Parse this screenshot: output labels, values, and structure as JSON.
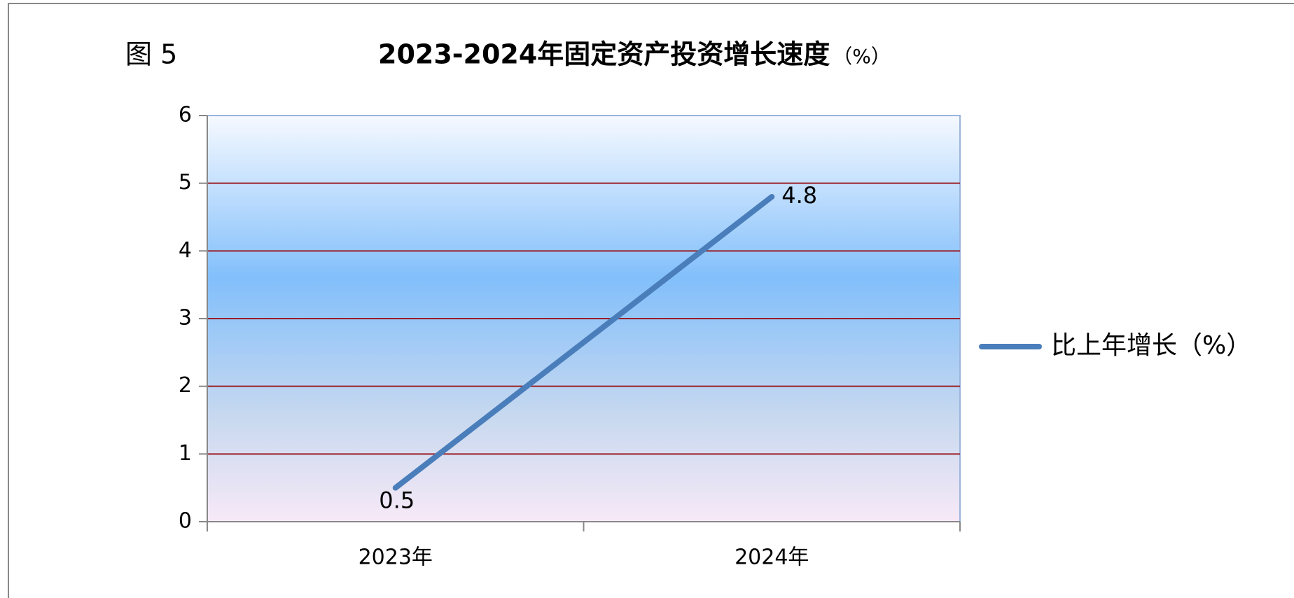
{
  "chart_data": {
    "type": "line",
    "figure_label": "图 5",
    "title": "2023-2024年固定资产投资增长速度",
    "title_unit": "（%）",
    "categories": [
      "2023年",
      "2024年"
    ],
    "series": [
      {
        "name": "比上年增长（%）",
        "color": "#4a7ebb",
        "values": [
          0.5,
          4.8
        ]
      }
    ],
    "ylim": [
      0,
      6
    ],
    "yticks": [
      0,
      1,
      2,
      3,
      4,
      5,
      6
    ],
    "grid": true,
    "legend": "right"
  }
}
